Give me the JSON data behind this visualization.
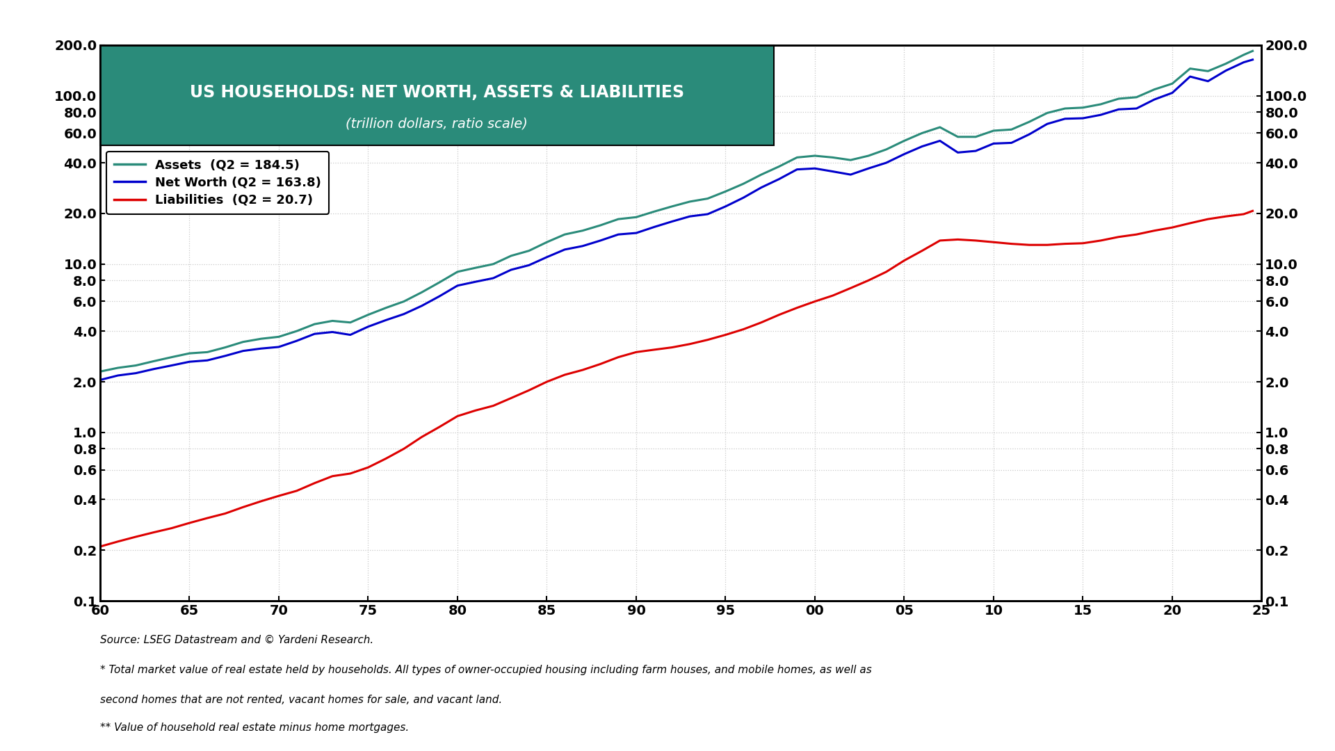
{
  "title_line1": "US HOUSEHOLDS: NET WORTH, ASSETS & LIABILITIES",
  "title_line2": "(trillion dollars, ratio scale)",
  "title_bg_color": "#2a8b7a",
  "title_text_color": "#ffffff",
  "legend_labels": [
    "Assets  (Q2 = 184.5)",
    "Net Worth (Q2 = 163.8)",
    "Liabilities  (Q2 = 20.7)"
  ],
  "line_colors": [
    "#2a8b7a",
    "#0000cc",
    "#dd0000"
  ],
  "source_text": "Source: LSEG Datastream and © Yardeni Research.",
  "footnote1": "* Total market value of real estate held by households. All types of owner-occupied housing including farm houses, and mobile homes, as well as",
  "footnote2": "second homes that are not rented, vacant homes for sale, and vacant land.",
  "footnote3": "** Value of household real estate minus home mortgages.",
  "x_start": 1960,
  "x_end": 2025,
  "x_ticks": [
    1960,
    1965,
    1970,
    1975,
    1980,
    1985,
    1990,
    1995,
    2000,
    2005,
    2010,
    2015,
    2020,
    2025
  ],
  "x_tick_labels": [
    "60",
    "65",
    "70",
    "75",
    "80",
    "85",
    "90",
    "95",
    "00",
    "05",
    "10",
    "15",
    "20",
    "25"
  ],
  "y_min": 0.1,
  "y_max": 200.0,
  "y_ticks": [
    0.1,
    0.2,
    0.4,
    0.6,
    0.8,
    1.0,
    2.0,
    4.0,
    6.0,
    8.0,
    10.0,
    20.0,
    40.0,
    60.0,
    80.0,
    100.0,
    200.0
  ],
  "y_tick_labels": [
    "0.1",
    "0.2",
    "0.4",
    "0.6",
    "0.8",
    "1.0",
    "2.0",
    "4.0",
    "6.0",
    "8.0",
    "10.0",
    "20.0",
    "40.0",
    "60.0",
    "80.0",
    "100.0",
    "200.0"
  ],
  "background_color": "#ffffff",
  "grid_color": "#c8c8c8",
  "assets_data": [
    [
      1960,
      2.3
    ],
    [
      1961,
      2.42
    ],
    [
      1962,
      2.5
    ],
    [
      1963,
      2.65
    ],
    [
      1964,
      2.8
    ],
    [
      1965,
      2.95
    ],
    [
      1966,
      3.0
    ],
    [
      1967,
      3.2
    ],
    [
      1968,
      3.45
    ],
    [
      1969,
      3.6
    ],
    [
      1970,
      3.7
    ],
    [
      1971,
      4.0
    ],
    [
      1972,
      4.4
    ],
    [
      1973,
      4.6
    ],
    [
      1974,
      4.5
    ],
    [
      1975,
      5.0
    ],
    [
      1976,
      5.5
    ],
    [
      1977,
      6.0
    ],
    [
      1978,
      6.8
    ],
    [
      1979,
      7.8
    ],
    [
      1980,
      9.0
    ],
    [
      1981,
      9.5
    ],
    [
      1982,
      10.0
    ],
    [
      1983,
      11.2
    ],
    [
      1984,
      12.0
    ],
    [
      1985,
      13.5
    ],
    [
      1986,
      15.0
    ],
    [
      1987,
      15.8
    ],
    [
      1988,
      17.0
    ],
    [
      1989,
      18.5
    ],
    [
      1990,
      19.0
    ],
    [
      1991,
      20.5
    ],
    [
      1992,
      22.0
    ],
    [
      1993,
      23.5
    ],
    [
      1994,
      24.5
    ],
    [
      1995,
      27.0
    ],
    [
      1996,
      30.0
    ],
    [
      1997,
      34.0
    ],
    [
      1998,
      38.0
    ],
    [
      1999,
      43.0
    ],
    [
      2000,
      44.0
    ],
    [
      2001,
      43.0
    ],
    [
      2002,
      41.5
    ],
    [
      2003,
      44.0
    ],
    [
      2004,
      48.0
    ],
    [
      2005,
      54.0
    ],
    [
      2006,
      60.0
    ],
    [
      2007,
      65.0
    ],
    [
      2008,
      57.0
    ],
    [
      2009,
      57.0
    ],
    [
      2010,
      62.0
    ],
    [
      2011,
      63.0
    ],
    [
      2012,
      70.0
    ],
    [
      2013,
      79.0
    ],
    [
      2014,
      84.0
    ],
    [
      2015,
      85.0
    ],
    [
      2016,
      89.0
    ],
    [
      2017,
      96.0
    ],
    [
      2018,
      98.0
    ],
    [
      2019,
      109.0
    ],
    [
      2020,
      118.0
    ],
    [
      2021,
      145.0
    ],
    [
      2022,
      140.0
    ],
    [
      2023,
      155.0
    ],
    [
      2024,
      175.0
    ],
    [
      2024.5,
      184.5
    ]
  ],
  "networth_data": [
    [
      1960,
      2.05
    ],
    [
      1961,
      2.18
    ],
    [
      1962,
      2.25
    ],
    [
      1963,
      2.38
    ],
    [
      1964,
      2.5
    ],
    [
      1965,
      2.63
    ],
    [
      1966,
      2.68
    ],
    [
      1967,
      2.85
    ],
    [
      1968,
      3.05
    ],
    [
      1969,
      3.15
    ],
    [
      1970,
      3.22
    ],
    [
      1971,
      3.5
    ],
    [
      1972,
      3.85
    ],
    [
      1973,
      3.95
    ],
    [
      1974,
      3.8
    ],
    [
      1975,
      4.25
    ],
    [
      1976,
      4.65
    ],
    [
      1977,
      5.05
    ],
    [
      1978,
      5.65
    ],
    [
      1979,
      6.45
    ],
    [
      1980,
      7.45
    ],
    [
      1981,
      7.85
    ],
    [
      1982,
      8.25
    ],
    [
      1983,
      9.25
    ],
    [
      1984,
      9.85
    ],
    [
      1985,
      11.0
    ],
    [
      1986,
      12.2
    ],
    [
      1987,
      12.8
    ],
    [
      1988,
      13.8
    ],
    [
      1989,
      15.0
    ],
    [
      1990,
      15.3
    ],
    [
      1991,
      16.6
    ],
    [
      1992,
      17.9
    ],
    [
      1993,
      19.2
    ],
    [
      1994,
      19.8
    ],
    [
      1995,
      22.0
    ],
    [
      1996,
      24.8
    ],
    [
      1997,
      28.5
    ],
    [
      1998,
      32.0
    ],
    [
      1999,
      36.5
    ],
    [
      2000,
      37.0
    ],
    [
      2001,
      35.5
    ],
    [
      2002,
      34.0
    ],
    [
      2003,
      37.0
    ],
    [
      2004,
      40.0
    ],
    [
      2005,
      45.0
    ],
    [
      2006,
      50.0
    ],
    [
      2007,
      54.0
    ],
    [
      2008,
      46.0
    ],
    [
      2009,
      47.0
    ],
    [
      2010,
      52.0
    ],
    [
      2011,
      52.5
    ],
    [
      2012,
      59.0
    ],
    [
      2013,
      68.0
    ],
    [
      2014,
      73.0
    ],
    [
      2015,
      73.5
    ],
    [
      2016,
      77.0
    ],
    [
      2017,
      83.0
    ],
    [
      2018,
      84.0
    ],
    [
      2019,
      95.0
    ],
    [
      2020,
      104.0
    ],
    [
      2021,
      130.0
    ],
    [
      2022,
      122.0
    ],
    [
      2023,
      141.0
    ],
    [
      2024,
      158.0
    ],
    [
      2024.5,
      163.8
    ]
  ],
  "liabilities_data": [
    [
      1960,
      0.21
    ],
    [
      1961,
      0.225
    ],
    [
      1962,
      0.24
    ],
    [
      1963,
      0.255
    ],
    [
      1964,
      0.27
    ],
    [
      1965,
      0.29
    ],
    [
      1966,
      0.31
    ],
    [
      1967,
      0.33
    ],
    [
      1968,
      0.36
    ],
    [
      1969,
      0.39
    ],
    [
      1970,
      0.42
    ],
    [
      1971,
      0.45
    ],
    [
      1972,
      0.5
    ],
    [
      1973,
      0.55
    ],
    [
      1974,
      0.57
    ],
    [
      1975,
      0.62
    ],
    [
      1976,
      0.7
    ],
    [
      1977,
      0.8
    ],
    [
      1978,
      0.94
    ],
    [
      1979,
      1.08
    ],
    [
      1980,
      1.25
    ],
    [
      1981,
      1.35
    ],
    [
      1982,
      1.44
    ],
    [
      1983,
      1.6
    ],
    [
      1984,
      1.78
    ],
    [
      1985,
      2.0
    ],
    [
      1986,
      2.2
    ],
    [
      1987,
      2.35
    ],
    [
      1988,
      2.55
    ],
    [
      1989,
      2.8
    ],
    [
      1990,
      3.0
    ],
    [
      1991,
      3.1
    ],
    [
      1992,
      3.2
    ],
    [
      1993,
      3.35
    ],
    [
      1994,
      3.55
    ],
    [
      1995,
      3.8
    ],
    [
      1996,
      4.1
    ],
    [
      1997,
      4.5
    ],
    [
      1998,
      5.0
    ],
    [
      1999,
      5.5
    ],
    [
      2000,
      6.0
    ],
    [
      2001,
      6.5
    ],
    [
      2002,
      7.2
    ],
    [
      2003,
      8.0
    ],
    [
      2004,
      9.0
    ],
    [
      2005,
      10.5
    ],
    [
      2006,
      12.0
    ],
    [
      2007,
      13.8
    ],
    [
      2008,
      14.0
    ],
    [
      2009,
      13.8
    ],
    [
      2010,
      13.5
    ],
    [
      2011,
      13.2
    ],
    [
      2012,
      13.0
    ],
    [
      2013,
      13.0
    ],
    [
      2014,
      13.2
    ],
    [
      2015,
      13.3
    ],
    [
      2016,
      13.8
    ],
    [
      2017,
      14.5
    ],
    [
      2018,
      15.0
    ],
    [
      2019,
      15.8
    ],
    [
      2020,
      16.5
    ],
    [
      2021,
      17.5
    ],
    [
      2022,
      18.5
    ],
    [
      2023,
      19.2
    ],
    [
      2024,
      19.8
    ],
    [
      2024.5,
      20.7
    ]
  ]
}
